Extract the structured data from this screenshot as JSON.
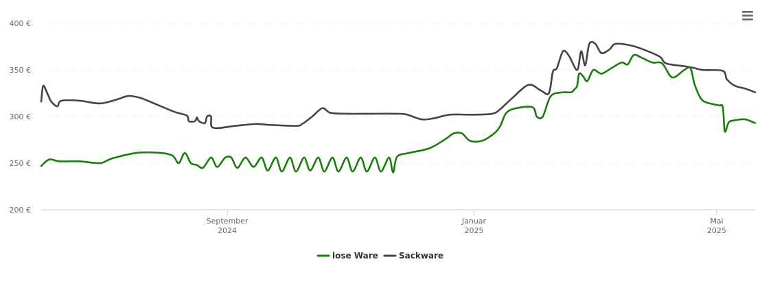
{
  "chart_data": {
    "type": "line",
    "title": "",
    "xlabel": "",
    "ylabel": "",
    "ylim": [
      200,
      400
    ],
    "xlim": [
      "2024-06-01",
      "2025-05-20"
    ],
    "y_ticks": [
      {
        "value": 200,
        "label": "200 €"
      },
      {
        "value": 250,
        "label": "250 €"
      },
      {
        "value": 300,
        "label": "300 €"
      },
      {
        "value": 350,
        "label": "350 €"
      },
      {
        "value": 400,
        "label": "400 €"
      }
    ],
    "x_ticks": [
      {
        "date": "2024-09-01",
        "label1": "September",
        "label2": "2024"
      },
      {
        "date": "2025-01-01",
        "label1": "Januar",
        "label2": "2025"
      },
      {
        "date": "2025-05-01",
        "label1": "Mai",
        "label2": "2025"
      }
    ],
    "grid": true,
    "legend_position": "bottom-center",
    "series": [
      {
        "name": "lose Ware",
        "color": "#1a7d0d",
        "points": [
          [
            "2024-06-01",
            247
          ],
          [
            "2024-06-05",
            254
          ],
          [
            "2024-06-10",
            252
          ],
          [
            "2024-06-20",
            252
          ],
          [
            "2024-06-30",
            250
          ],
          [
            "2024-07-06",
            255
          ],
          [
            "2024-07-18",
            261
          ],
          [
            "2024-07-30",
            261
          ],
          [
            "2024-08-05",
            258
          ],
          [
            "2024-08-08",
            250
          ],
          [
            "2024-08-11",
            261
          ],
          [
            "2024-08-14",
            250
          ],
          [
            "2024-08-17",
            248
          ],
          [
            "2024-08-20",
            245
          ],
          [
            "2024-08-24",
            256
          ],
          [
            "2024-08-27",
            246
          ],
          [
            "2024-08-31",
            256
          ],
          [
            "2024-09-03",
            256
          ],
          [
            "2024-09-06",
            245
          ],
          [
            "2024-09-10",
            256
          ],
          [
            "2024-09-14",
            246
          ],
          [
            "2024-09-18",
            256
          ],
          [
            "2024-09-21",
            242
          ],
          [
            "2024-09-25",
            256
          ],
          [
            "2024-09-28",
            241
          ],
          [
            "2024-10-02",
            256
          ],
          [
            "2024-10-05",
            241
          ],
          [
            "2024-10-09",
            256
          ],
          [
            "2024-10-12",
            242
          ],
          [
            "2024-10-16",
            256
          ],
          [
            "2024-10-19",
            241
          ],
          [
            "2024-10-23",
            256
          ],
          [
            "2024-10-26",
            241
          ],
          [
            "2024-10-30",
            256
          ],
          [
            "2024-11-02",
            241
          ],
          [
            "2024-11-06",
            256
          ],
          [
            "2024-11-09",
            241
          ],
          [
            "2024-11-13",
            256
          ],
          [
            "2024-11-16",
            241
          ],
          [
            "2024-11-20",
            256
          ],
          [
            "2024-11-22",
            240
          ],
          [
            "2024-11-24",
            257
          ],
          [
            "2024-11-30",
            261
          ],
          [
            "2024-12-10",
            266
          ],
          [
            "2024-12-18",
            276
          ],
          [
            "2024-12-22",
            282
          ],
          [
            "2024-12-26",
            282
          ],
          [
            "2024-12-30",
            274
          ],
          [
            "2025-01-05",
            274
          ],
          [
            "2025-01-11",
            282
          ],
          [
            "2025-01-14",
            290
          ],
          [
            "2025-01-17",
            304
          ],
          [
            "2025-01-22",
            309
          ],
          [
            "2025-01-30",
            310
          ],
          [
            "2025-02-01",
            300
          ],
          [
            "2025-02-04",
            300
          ],
          [
            "2025-02-08",
            322
          ],
          [
            "2025-02-14",
            326
          ],
          [
            "2025-02-18",
            326
          ],
          [
            "2025-02-20",
            330
          ],
          [
            "2025-02-21",
            333
          ],
          [
            "2025-02-22",
            346
          ],
          [
            "2025-02-24",
            343
          ],
          [
            "2025-02-26",
            338
          ],
          [
            "2025-03-01",
            350
          ],
          [
            "2025-03-05",
            346
          ],
          [
            "2025-03-10",
            352
          ],
          [
            "2025-03-15",
            358
          ],
          [
            "2025-03-18",
            356
          ],
          [
            "2025-03-21",
            366
          ],
          [
            "2025-03-25",
            363
          ],
          [
            "2025-03-30",
            358
          ],
          [
            "2025-04-04",
            357
          ],
          [
            "2025-04-09",
            342
          ],
          [
            "2025-04-15",
            350
          ],
          [
            "2025-04-18",
            352
          ],
          [
            "2025-04-20",
            335
          ],
          [
            "2025-04-23",
            320
          ],
          [
            "2025-04-26",
            315
          ],
          [
            "2025-05-02",
            312
          ],
          [
            "2025-05-04",
            310
          ],
          [
            "2025-05-05",
            284
          ],
          [
            "2025-05-07",
            294
          ],
          [
            "2025-05-10",
            296
          ],
          [
            "2025-05-15",
            297
          ],
          [
            "2025-05-20",
            293
          ]
        ]
      },
      {
        "name": "Sackware",
        "color": "#434348",
        "points": [
          [
            "2024-06-01",
            316
          ],
          [
            "2024-06-02",
            333
          ],
          [
            "2024-06-04",
            325
          ],
          [
            "2024-06-06",
            316
          ],
          [
            "2024-06-09",
            311
          ],
          [
            "2024-06-11",
            317
          ],
          [
            "2024-06-20",
            317
          ],
          [
            "2024-06-30",
            314
          ],
          [
            "2024-07-08",
            318
          ],
          [
            "2024-07-14",
            322
          ],
          [
            "2024-07-20",
            320
          ],
          [
            "2024-07-28",
            313
          ],
          [
            "2024-08-06",
            305
          ],
          [
            "2024-08-12",
            301
          ],
          [
            "2024-08-13",
            295
          ],
          [
            "2024-08-16",
            295
          ],
          [
            "2024-08-17",
            299
          ],
          [
            "2024-08-18",
            295
          ],
          [
            "2024-08-21",
            293
          ],
          [
            "2024-08-22",
            300
          ],
          [
            "2024-08-24",
            300
          ],
          [
            "2024-08-25",
            288
          ],
          [
            "2024-09-05",
            290
          ],
          [
            "2024-09-15",
            292
          ],
          [
            "2024-09-22",
            291
          ],
          [
            "2024-10-05",
            290
          ],
          [
            "2024-10-08",
            292
          ],
          [
            "2024-10-13",
            300
          ],
          [
            "2024-10-18",
            309
          ],
          [
            "2024-10-22",
            304
          ],
          [
            "2024-10-30",
            303
          ],
          [
            "2024-11-10",
            303
          ],
          [
            "2024-11-24",
            303
          ],
          [
            "2024-11-29",
            302
          ],
          [
            "2024-12-06",
            297
          ],
          [
            "2024-12-12",
            298
          ],
          [
            "2024-12-20",
            302
          ],
          [
            "2024-12-31",
            302
          ],
          [
            "2025-01-10",
            303
          ],
          [
            "2025-01-14",
            308
          ],
          [
            "2025-01-20",
            320
          ],
          [
            "2025-01-28",
            334
          ],
          [
            "2025-02-03",
            328
          ],
          [
            "2025-02-07",
            325
          ],
          [
            "2025-02-09",
            348
          ],
          [
            "2025-02-11",
            352
          ],
          [
            "2025-02-14",
            370
          ],
          [
            "2025-02-17",
            365
          ],
          [
            "2025-02-21",
            350
          ],
          [
            "2025-02-23",
            370
          ],
          [
            "2025-02-25",
            355
          ],
          [
            "2025-02-27",
            378
          ],
          [
            "2025-03-02",
            378
          ],
          [
            "2025-03-05",
            368
          ],
          [
            "2025-03-09",
            372
          ],
          [
            "2025-03-12",
            378
          ],
          [
            "2025-03-20",
            376
          ],
          [
            "2025-03-28",
            370
          ],
          [
            "2025-04-03",
            364
          ],
          [
            "2025-04-06",
            357
          ],
          [
            "2025-04-15",
            354
          ],
          [
            "2025-04-20",
            352
          ],
          [
            "2025-04-24",
            350
          ],
          [
            "2025-05-04",
            349
          ],
          [
            "2025-05-06",
            340
          ],
          [
            "2025-05-10",
            333
          ],
          [
            "2025-05-15",
            330
          ],
          [
            "2025-05-20",
            326
          ]
        ]
      }
    ]
  },
  "ui": {
    "menu_icon": "hamburger-menu-icon"
  }
}
